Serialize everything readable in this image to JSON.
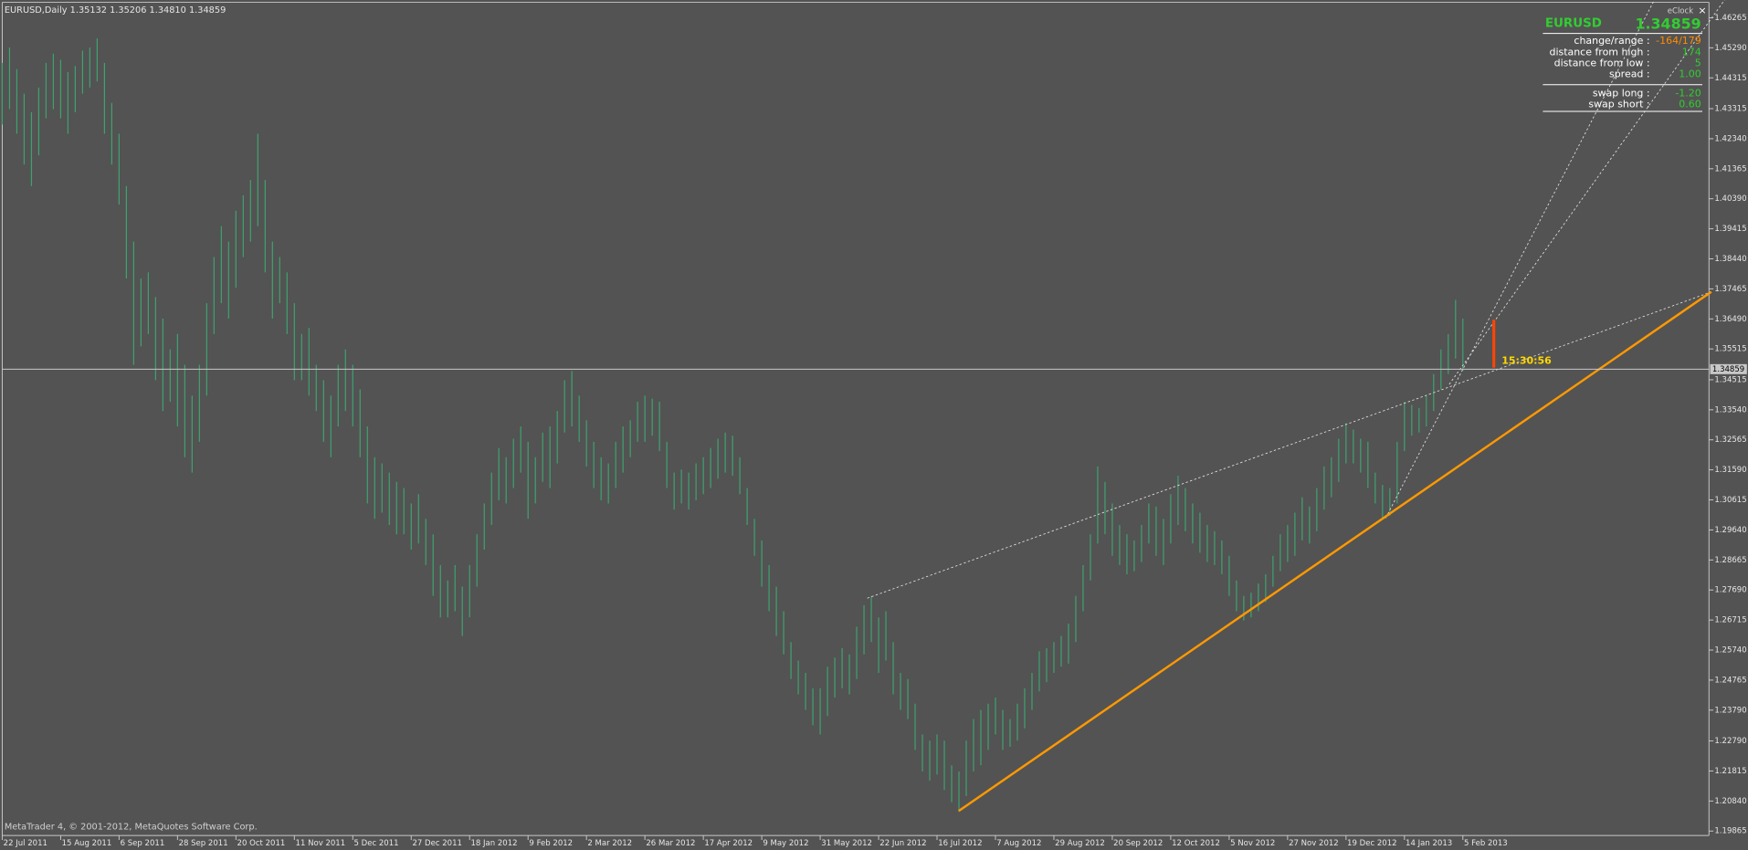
{
  "chart_data": {
    "type": "ohlc",
    "title": "EURUSD,Daily  1.35132 1.35206 1.34810 1.34859",
    "color": "#3fa16f",
    "ylim": [
      1.1972,
      1.4677
    ],
    "xlim": [
      0,
      233.7
    ],
    "yticks": [
      {
        "value": 1.46265,
        "label": "1.46265"
      },
      {
        "value": 1.4529,
        "label": "1.45290"
      },
      {
        "value": 1.44315,
        "label": "1.44315"
      },
      {
        "value": 1.43315,
        "label": "1.43315"
      },
      {
        "value": 1.4234,
        "label": "1.42340"
      },
      {
        "value": 1.41365,
        "label": "1.41365"
      },
      {
        "value": 1.4039,
        "label": "1.40390"
      },
      {
        "value": 1.39415,
        "label": "1.39415"
      },
      {
        "value": 1.3844,
        "label": "1.38440"
      },
      {
        "value": 1.37465,
        "label": "1.37465"
      },
      {
        "value": 1.3649,
        "label": "1.36490"
      },
      {
        "value": 1.35515,
        "label": "1.35515"
      },
      {
        "value": 1.34515,
        "label": "1.34515"
      },
      {
        "value": 1.3354,
        "label": "1.33540"
      },
      {
        "value": 1.32565,
        "label": "1.32565"
      },
      {
        "value": 1.3159,
        "label": "1.31590"
      },
      {
        "value": 1.30615,
        "label": "1.30615"
      },
      {
        "value": 1.2964,
        "label": "1.29640"
      },
      {
        "value": 1.28665,
        "label": "1.28665"
      },
      {
        "value": 1.2769,
        "label": "1.27690"
      },
      {
        "value": 1.26715,
        "label": "1.26715"
      },
      {
        "value": 1.2574,
        "label": "1.25740"
      },
      {
        "value": 1.24765,
        "label": "1.24765"
      },
      {
        "value": 1.2379,
        "label": "1.23790"
      },
      {
        "value": 1.2279,
        "label": "1.22790"
      },
      {
        "value": 1.21815,
        "label": "1.21815"
      },
      {
        "value": 1.2084,
        "label": "1.20840"
      },
      {
        "value": 1.19865,
        "label": "1.19865"
      }
    ],
    "xticks": [
      {
        "value": 0,
        "label": "22 Jul 2011"
      },
      {
        "value": 8,
        "label": "15 Aug 2011"
      },
      {
        "value": 16,
        "label": "6 Sep 2011"
      },
      {
        "value": 24,
        "label": "28 Sep 2011"
      },
      {
        "value": 32,
        "label": "20 Oct 2011"
      },
      {
        "value": 40,
        "label": "11 Nov 2011"
      },
      {
        "value": 48,
        "label": "5 Dec 2011"
      },
      {
        "value": 56,
        "label": "27 Dec 2011"
      },
      {
        "value": 64,
        "label": "18 Jan 2012"
      },
      {
        "value": 72,
        "label": "9 Feb 2012"
      },
      {
        "value": 80,
        "label": "2 Mar 2012"
      },
      {
        "value": 88,
        "label": "26 Mar 2012"
      },
      {
        "value": 96,
        "label": "17 Apr 2012"
      },
      {
        "value": 104,
        "label": "9 May 2012"
      },
      {
        "value": 112,
        "label": "31 May 2012"
      },
      {
        "value": 120,
        "label": "22 Jun 2012"
      },
      {
        "value": 128,
        "label": "16 Jul 2012"
      },
      {
        "value": 136,
        "label": "7 Aug 2012"
      },
      {
        "value": 144,
        "label": "29 Aug 2012"
      },
      {
        "value": 152,
        "label": "20 Sep 2012"
      },
      {
        "value": 160,
        "label": "12 Oct 2012"
      },
      {
        "value": 168,
        "label": "5 Nov 2012"
      },
      {
        "value": 176,
        "label": "27 Nov 2012"
      },
      {
        "value": 184,
        "label": "19 Dec 2012"
      },
      {
        "value": 192,
        "label": "14 Jan 2013"
      },
      {
        "value": 200,
        "label": "5 Feb 2013"
      }
    ],
    "current_price": 1.34859,
    "high": [
      1.448,
      1.453,
      1.446,
      1.438,
      1.432,
      1.44,
      1.448,
      1.451,
      1.449,
      1.445,
      1.447,
      1.452,
      1.453,
      1.456,
      1.448,
      1.435,
      1.425,
      1.408,
      1.39,
      1.378,
      1.38,
      1.372,
      1.365,
      1.355,
      1.36,
      1.35,
      1.34,
      1.35,
      1.37,
      1.385,
      1.395,
      1.39,
      1.4,
      1.405,
      1.41,
      1.425,
      1.41,
      1.39,
      1.385,
      1.38,
      1.37,
      1.36,
      1.362,
      1.35,
      1.345,
      1.34,
      1.35,
      1.355,
      1.35,
      1.342,
      1.33,
      1.32,
      1.318,
      1.315,
      1.312,
      1.31,
      1.305,
      1.308,
      1.3,
      1.295,
      1.285,
      1.28,
      1.285,
      1.278,
      1.285,
      1.295,
      1.305,
      1.315,
      1.323,
      1.32,
      1.326,
      1.33,
      1.325,
      1.32,
      1.328,
      1.33,
      1.335,
      1.345,
      1.348,
      1.34,
      1.332,
      1.325,
      1.32,
      1.318,
      1.325,
      1.33,
      1.332,
      1.338,
      1.34,
      1.339,
      1.338,
      1.325,
      1.315,
      1.316,
      1.315,
      1.318,
      1.32,
      1.323,
      1.326,
      1.328,
      1.327,
      1.32,
      1.31,
      1.3,
      1.293,
      1.285,
      1.278,
      1.27,
      1.26,
      1.254,
      1.25,
      1.245,
      1.245,
      1.252,
      1.255,
      1.258,
      1.256,
      1.265,
      1.272,
      1.275,
      1.268,
      1.27,
      1.26,
      1.25,
      1.248,
      1.24,
      1.23,
      1.228,
      1.23,
      1.228,
      1.22,
      1.218,
      1.228,
      1.235,
      1.238,
      1.24,
      1.242,
      1.238,
      1.235,
      1.24,
      1.245,
      1.25,
      1.257,
      1.258,
      1.26,
      1.262,
      1.266,
      1.275,
      1.285,
      1.295,
      1.317,
      1.312,
      1.305,
      1.298,
      1.295,
      1.293,
      1.298,
      1.305,
      1.304,
      1.3,
      1.308,
      1.314,
      1.31,
      1.305,
      1.302,
      1.298,
      1.296,
      1.293,
      1.288,
      1.28,
      1.275,
      1.276,
      1.279,
      1.282,
      1.288,
      1.295,
      1.298,
      1.302,
      1.307,
      1.304,
      1.31,
      1.317,
      1.32,
      1.326,
      1.331,
      1.329,
      1.326,
      1.325,
      1.315,
      1.311,
      1.31,
      1.325,
      1.338,
      1.337,
      1.336,
      1.34,
      1.347,
      1.355,
      1.36,
      1.3711,
      1.365
    ],
    "low": [
      1.428,
      1.433,
      1.425,
      1.415,
      1.408,
      1.418,
      1.43,
      1.433,
      1.43,
      1.425,
      1.432,
      1.438,
      1.44,
      1.442,
      1.425,
      1.415,
      1.402,
      1.378,
      1.35,
      1.356,
      1.36,
      1.345,
      1.335,
      1.338,
      1.33,
      1.32,
      1.315,
      1.325,
      1.34,
      1.36,
      1.37,
      1.365,
      1.375,
      1.385,
      1.39,
      1.395,
      1.38,
      1.365,
      1.37,
      1.36,
      1.345,
      1.345,
      1.34,
      1.335,
      1.325,
      1.32,
      1.33,
      1.335,
      1.33,
      1.32,
      1.305,
      1.3,
      1.302,
      1.298,
      1.295,
      1.295,
      1.29,
      1.292,
      1.285,
      1.275,
      1.268,
      1.268,
      1.27,
      1.262,
      1.268,
      1.278,
      1.29,
      1.298,
      1.306,
      1.305,
      1.31,
      1.315,
      1.3,
      1.305,
      1.312,
      1.31,
      1.318,
      1.328,
      1.33,
      1.325,
      1.317,
      1.31,
      1.306,
      1.305,
      1.31,
      1.315,
      1.32,
      1.325,
      1.325,
      1.327,
      1.322,
      1.31,
      1.303,
      1.305,
      1.303,
      1.306,
      1.308,
      1.31,
      1.313,
      1.315,
      1.314,
      1.308,
      1.298,
      1.288,
      1.278,
      1.27,
      1.262,
      1.256,
      1.248,
      1.243,
      1.238,
      1.233,
      1.23,
      1.236,
      1.242,
      1.245,
      1.243,
      1.248,
      1.256,
      1.26,
      1.25,
      1.254,
      1.243,
      1.238,
      1.235,
      1.225,
      1.218,
      1.215,
      1.217,
      1.212,
      1.208,
      1.205,
      1.21,
      1.218,
      1.22,
      1.225,
      1.23,
      1.225,
      1.226,
      1.228,
      1.232,
      1.238,
      1.244,
      1.247,
      1.25,
      1.252,
      1.253,
      1.26,
      1.27,
      1.28,
      1.292,
      1.295,
      1.288,
      1.285,
      1.282,
      1.283,
      1.286,
      1.292,
      1.288,
      1.285,
      1.292,
      1.298,
      1.296,
      1.292,
      1.289,
      1.286,
      1.285,
      1.282,
      1.275,
      1.27,
      1.267,
      1.268,
      1.27,
      1.273,
      1.278,
      1.283,
      1.286,
      1.288,
      1.293,
      1.292,
      1.296,
      1.303,
      1.307,
      1.312,
      1.318,
      1.318,
      1.315,
      1.31,
      1.305,
      1.3,
      1.301,
      1.305,
      1.322,
      1.327,
      1.328,
      1.33,
      1.335,
      1.342,
      1.347,
      1.352,
      1.3481
    ]
  },
  "footer": "MetaTrader 4, © 2001-2012, MetaQuotes Software Corp.",
  "timer": "15:30:56",
  "eclock": {
    "title": "eClock",
    "symbol": "EURUSD",
    "price": "1.34859",
    "rows": [
      {
        "label": "change/range :",
        "value": "-164/179"
      },
      {
        "label": "distance from high :",
        "value": "174"
      },
      {
        "label": "distance from low :",
        "value": "5"
      },
      {
        "label": "spread :",
        "value": "1.00"
      },
      {
        "label": "swap long :",
        "value": "-1.20"
      },
      {
        "label": "swap short :",
        "value": "0.60"
      }
    ]
  }
}
